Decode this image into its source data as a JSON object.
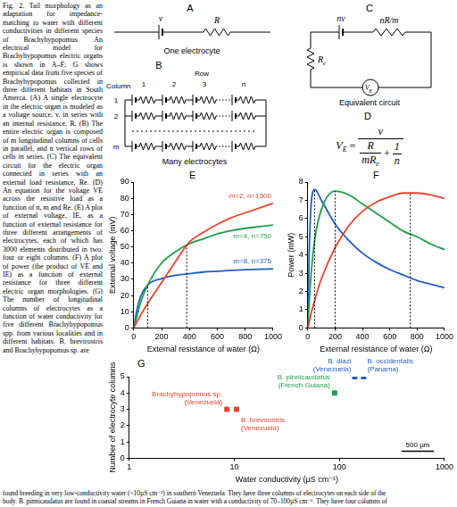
{
  "caption": {
    "column": "Fig. 2. Tail morphology as an adaptation for impedance-matching to water with different conductivities in different species of Brachyhypopomus. An electrical model for Brachyhypopomus electric organs is shown in A–F; G shows empirical data from five species of Brachyhypopomus collected in three different habitats in South Amerca. (A) A single electrocyte in the electric organ is modeled as a voltage source, v, in series with an internal resistance, R. (B) The entire electric organ is composed of m longitudinal columns of cells in parallel, and n vertical rows of cells in series. (C) The equivalent circuit for the electric organ connected in series with an external load resistance, Re. (D) An equation for the voltage VE across the resistive load as a function of n, m and Re. (E) A plot of external voltage, IE, as a function of external resistance for three different arrangements of electrocytes, each of which has 3000 elements distributed in two, four or eight columns. (F) A plot of power (the product of VE and IE) as a function of external resistance for three different electric organ morphologies. (G) The number of longitudinal columns of electrocytes as a function of water conductivity for five different Brachyhypopomus spp. from various localities and in different habitats. B. brevirostris and Brachyhypopomus sp. are",
    "bottom_lines": [
      "found breeding in very low-conductivity water (<10µS cm⁻¹) in southern Venezuela. They have three columns of electrocytes on each side of the",
      "body. B. pinnicaudatus are found in coastal streams in French Guiana in water with a conductivity of 70–100µS cm⁻¹. They have four columns of"
    ]
  },
  "panel_A": {
    "letter": "A",
    "source": "v",
    "resistance": "R",
    "caption": "One electrocyte"
  },
  "panel_B": {
    "letter": "B",
    "row_title": "Row",
    "row_numbers": [
      "1",
      "2",
      "3",
      "n"
    ],
    "column_title": "Column",
    "column_numbers": [
      "1",
      "2",
      "m"
    ],
    "caption": "Many electrocytes"
  },
  "panel_C": {
    "letter": "C",
    "source": "nv",
    "resistance": "nR/m",
    "load": {
      "text": "R",
      "sub": "e"
    },
    "meter": {
      "text": "V",
      "sub": "E"
    },
    "caption": "Equivalent circuit"
  },
  "panel_D": {
    "letter": "D",
    "lhs": {
      "text": "V",
      "sub": "E"
    },
    "equals": "=",
    "numerator": "v",
    "term1_numerator": "R",
    "term1_denominator": {
      "text": "mR",
      "sub": "e"
    },
    "operator": "+",
    "term2_numerator": "1",
    "term2_denominator": "n"
  },
  "chart_data": [
    {
      "panel": "E",
      "type": "line",
      "x_label": "External resistance of water (Ω)",
      "y_label": "External voltage (mV)",
      "xlim": [
        0,
        1000
      ],
      "xticks": [
        0,
        200,
        400,
        600,
        800,
        1000
      ],
      "ylim": [
        0,
        90
      ],
      "yticks": [
        0,
        10,
        20,
        30,
        40,
        50,
        60,
        70,
        80,
        90
      ],
      "grid": false,
      "x": [
        0,
        10,
        25,
        50,
        100,
        200,
        300,
        400,
        500,
        600,
        700,
        800,
        900,
        1000
      ],
      "series": [
        {
          "name": "m=2, n=1500",
          "color": "#e8442c",
          "values": [
            0,
            1.5,
            4,
            8,
            15,
            28,
            41,
            53,
            59,
            64,
            68,
            71,
            74,
            77
          ]
        },
        {
          "name": "m=4, n=750",
          "color": "#1f9e48",
          "values": [
            0,
            3,
            8,
            16,
            26.5,
            40,
            47,
            52,
            55,
            58,
            60,
            61.5,
            62.5,
            63.5
          ]
        },
        {
          "name": "m=8, n=375",
          "color": "#1f5fbf",
          "values": [
            0,
            5,
            12,
            19.5,
            26.5,
            30.5,
            32.5,
            33.5,
            34.5,
            35,
            35.5,
            36,
            36.2,
            36.5
          ]
        }
      ],
      "dotted_lines": [
        {
          "x": 100,
          "y": 26.5
        },
        {
          "x": 380,
          "y": 51.5
        }
      ]
    },
    {
      "panel": "F",
      "type": "line",
      "x_label": "External resistance of water (Ω)",
      "y_label": "Power (mW)",
      "xlim": [
        0,
        1000
      ],
      "xticks": [
        0,
        200,
        400,
        600,
        800,
        1000
      ],
      "ylim": [
        0,
        8
      ],
      "yticks": [
        0,
        1,
        2,
        3,
        4,
        5,
        6,
        7,
        8
      ],
      "grid": false,
      "x": [
        0,
        10,
        25,
        50,
        100,
        200,
        300,
        400,
        500,
        600,
        700,
        800,
        900,
        1000
      ],
      "series": [
        {
          "color": "#e8442c",
          "values": [
            0,
            0.3,
            0.8,
            1.5,
            2.7,
            4.4,
            5.6,
            6.4,
            6.9,
            7.2,
            7.4,
            7.4,
            7.3,
            7.1
          ]
        },
        {
          "color": "#1f9e48",
          "values": [
            0,
            1.3,
            3,
            4.8,
            6.5,
            7.5,
            7.3,
            6.8,
            6.3,
            5.8,
            5.3,
            5,
            4.6,
            4.3
          ]
        },
        {
          "color": "#1f5fbf",
          "values": [
            0,
            4,
            6.8,
            7.6,
            7,
            5.7,
            4.8,
            4.1,
            3.6,
            3.2,
            2.9,
            2.6,
            2.4,
            2.2
          ]
        }
      ],
      "dotted_lines": [
        {
          "x": 50,
          "y": 7.6
        },
        {
          "x": 200,
          "y": 7.5
        },
        {
          "x": 750,
          "y": 7.4
        }
      ]
    },
    {
      "panel": "G",
      "type": "scatter",
      "log": "x",
      "marker": "square",
      "grid": false,
      "x_label": "Water conductivity (µS cm⁻¹)",
      "y_label": "Number of electrocyte columns",
      "xlim": [
        1,
        1000
      ],
      "xticks": [
        1,
        10,
        100,
        1000
      ],
      "ylim": [
        0,
        5
      ],
      "yticks": [
        0,
        1,
        2,
        3,
        4,
        5
      ],
      "series": [
        {
          "name": "Brachyhypopomus sp.",
          "locality": "(Venezuela)",
          "color": "#e8442c",
          "x": [
            8.5
          ],
          "values": [
            3
          ]
        },
        {
          "name": "B. brevirostris",
          "locality": "(Venezuela)",
          "color": "#e8442c",
          "x": [
            10.5
          ],
          "values": [
            3
          ]
        },
        {
          "name": "B. pinnicaudatus",
          "locality": "(French Guiana)",
          "color": "#1f9e48",
          "x": [
            90
          ],
          "values": [
            4
          ]
        },
        {
          "name": "B. diazi",
          "locality": "(Venezuela)",
          "color": "#1f5fbf",
          "x": [
            140
          ],
          "values": [
            5
          ]
        },
        {
          "name": "B. occidentalis",
          "locality": "(Panama)",
          "color": "#1f5fbf",
          "x": [
            170
          ],
          "values": [
            5
          ]
        }
      ],
      "scale_bar_label": "500 µm"
    }
  ]
}
